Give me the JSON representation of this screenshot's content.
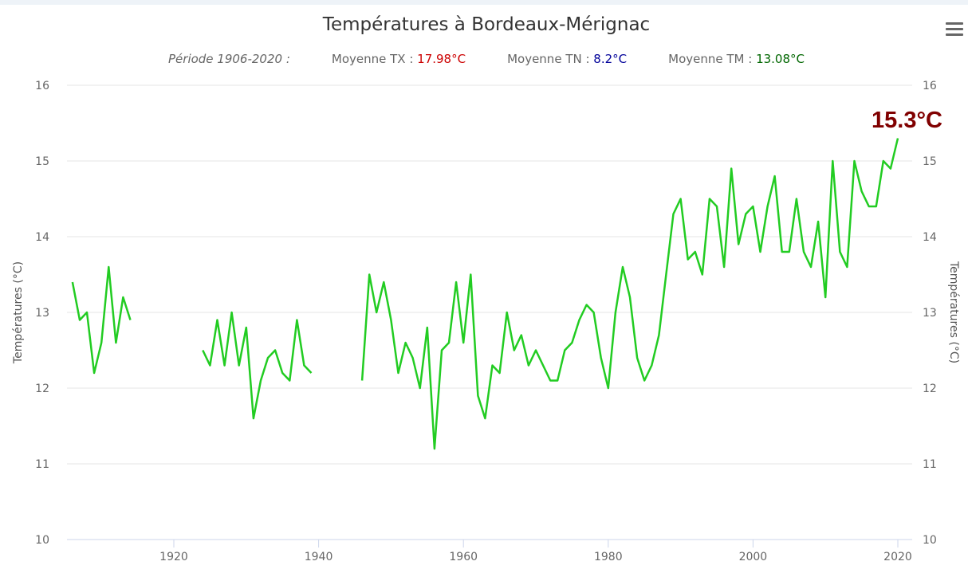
{
  "title": "Températures à Bordeaux-Mérignac",
  "subtitle": {
    "period": "Période 1906-2020 :",
    "tx_label": "Moyenne TX : ",
    "tx_value": "17.98°C",
    "tx_color": "#cc0000",
    "tn_label": "Moyenne TN : ",
    "tn_value": "8.2°C",
    "tn_color": "#000099",
    "tm_label": "Moyenne TM : ",
    "tm_value": "13.08°C",
    "tm_color": "#006600"
  },
  "menu_icon": "hamburger-menu-icon",
  "chart_data": {
    "type": "line",
    "title": "Températures à Bordeaux-Mérignac",
    "ylabel": "Températures (°C)",
    "ylabel_right": "Températures (°C)",
    "xlabel": "",
    "ylim": [
      10,
      16
    ],
    "yticks": [
      "10",
      "11",
      "12",
      "13",
      "14",
      "15",
      "16"
    ],
    "xticks": [
      "1920",
      "1940",
      "1960",
      "1980",
      "2000",
      "2020"
    ],
    "grid": true,
    "annotation": "15.3°C",
    "annotation_color": "#800000",
    "series": [
      {
        "name": "TM",
        "color": "#22cc22",
        "start_year": 1906,
        "values": [
          13.4,
          12.9,
          13.0,
          12.2,
          12.6,
          13.6,
          12.6,
          13.2,
          12.9,
          null,
          null,
          null,
          null,
          null,
          null,
          null,
          null,
          null,
          12.5,
          12.3,
          12.9,
          12.3,
          13.0,
          12.3,
          12.8,
          11.6,
          12.1,
          12.4,
          12.5,
          12.2,
          12.1,
          12.9,
          12.3,
          12.2,
          null,
          null,
          null,
          null,
          null,
          null,
          12.1,
          13.5,
          13.0,
          13.4,
          12.9,
          12.2,
          12.6,
          12.4,
          12.0,
          12.8,
          11.2,
          12.5,
          12.6,
          13.4,
          12.6,
          13.5,
          11.9,
          11.6,
          12.3,
          12.2,
          13.0,
          12.5,
          12.7,
          12.3,
          12.5,
          12.3,
          12.1,
          12.1,
          12.5,
          12.6,
          12.9,
          13.1,
          13.0,
          12.4,
          12.0,
          13.0,
          13.6,
          13.2,
          12.4,
          12.1,
          12.3,
          12.7,
          13.5,
          14.3,
          14.5,
          13.7,
          13.8,
          13.5,
          14.5,
          14.4,
          13.6,
          14.9,
          13.9,
          14.3,
          14.4,
          13.8,
          14.4,
          14.8,
          13.8,
          13.8,
          14.5,
          13.8,
          13.6,
          14.2,
          13.2,
          15.0,
          13.8,
          13.6,
          15.0,
          14.6,
          14.4,
          14.4,
          15.0,
          14.9,
          15.3
        ]
      }
    ]
  }
}
